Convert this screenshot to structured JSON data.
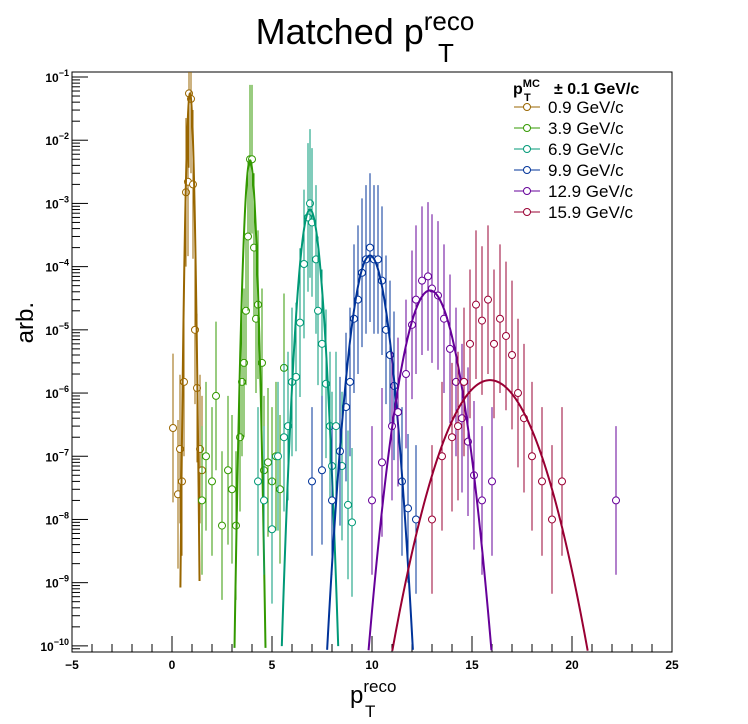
{
  "chart_data": {
    "type": "scatter",
    "title": {
      "main": "Matched p",
      "sup": "reco",
      "sub": "T"
    },
    "xlabel": {
      "main": "p",
      "sup": "reco",
      "sub": "T"
    },
    "ylabel": "arb.",
    "xlim": [
      -5,
      25
    ],
    "ylim": [
      8e-11,
      0.12
    ],
    "yscale": "log",
    "x_ticks": [
      -5,
      0,
      5,
      10,
      15,
      20,
      25
    ],
    "x_tick_labels": [
      "−5",
      "0",
      "5",
      "10",
      "15",
      "20",
      "25"
    ],
    "y_ticks": [
      1e-10,
      1e-09,
      1e-08,
      1e-07,
      1e-06,
      1e-05,
      0.0001,
      0.001,
      0.01,
      0.1
    ],
    "y_tick_labels": [
      {
        "base": "10",
        "exp": "−10"
      },
      {
        "base": "10",
        "exp": "−9"
      },
      {
        "base": "10",
        "exp": "−8"
      },
      {
        "base": "10",
        "exp": "−7"
      },
      {
        "base": "10",
        "exp": "−6"
      },
      {
        "base": "10",
        "exp": "−5"
      },
      {
        "base": "10",
        "exp": "−4"
      },
      {
        "base": "10",
        "exp": "−3"
      },
      {
        "base": "10",
        "exp": "−2"
      },
      {
        "base": "10",
        "exp": "−1"
      }
    ],
    "grid": false,
    "legend": {
      "placement": "top-right",
      "header": {
        "p": "p",
        "sup": "MC",
        "sub": "T",
        "rest": "± 0.1 GeV/c"
      }
    },
    "series": [
      {
        "name": "0.9 GeV/c",
        "color": "#996600",
        "fit": {
          "mu": 0.9,
          "sigma": 0.08,
          "peak": 0.055
        },
        "points": [
          [
            0.05,
            2.8e-07
          ],
          [
            0.3,
            2.5e-08
          ],
          [
            0.4,
            1.3e-07
          ],
          [
            0.5,
            4e-08
          ],
          [
            0.6,
            1.5e-06
          ],
          [
            0.7,
            0.0015
          ],
          [
            0.8,
            0.0022
          ],
          [
            0.85,
            0.055
          ],
          [
            0.95,
            0.045
          ],
          [
            1.05,
            0.002
          ],
          [
            1.15,
            1e-05
          ],
          [
            1.25,
            1.2e-06
          ],
          [
            1.4,
            1.3e-07
          ],
          [
            1.5,
            6e-08
          ]
        ]
      },
      {
        "name": "3.9 GeV/c",
        "color": "#339900",
        "fit": {
          "mu": 3.9,
          "sigma": 0.13,
          "peak": 0.0048
        },
        "points": [
          [
            1.5,
            2e-08
          ],
          [
            1.7,
            1e-07
          ],
          [
            2.0,
            4e-08
          ],
          [
            2.2,
            9e-07
          ],
          [
            2.5,
            8e-09
          ],
          [
            2.8,
            6e-08
          ],
          [
            3.0,
            3e-08
          ],
          [
            3.2,
            8e-09
          ],
          [
            3.4,
            2e-07
          ],
          [
            3.5,
            1.5e-06
          ],
          [
            3.6,
            3e-06
          ],
          [
            3.7,
            2e-05
          ],
          [
            3.8,
            0.0003
          ],
          [
            3.9,
            0.005
          ],
          [
            4.0,
            0.005
          ],
          [
            4.1,
            0.0002
          ],
          [
            4.2,
            1.5e-05
          ],
          [
            4.3,
            2.5e-05
          ],
          [
            4.5,
            3e-06
          ],
          [
            4.6,
            6e-08
          ],
          [
            4.8,
            8e-08
          ],
          [
            5.0,
            4e-08
          ],
          [
            5.2,
            1e-07
          ],
          [
            5.4,
            3e-08
          ],
          [
            5.6,
            2.5e-06
          ]
        ]
      },
      {
        "name": "6.9 GeV/c",
        "color": "#009977",
        "fit": {
          "mu": 6.9,
          "sigma": 0.25,
          "peak": 0.0008
        },
        "points": [
          [
            4.3,
            4e-08
          ],
          [
            4.6,
            2e-08
          ],
          [
            5.0,
            7e-09
          ],
          [
            5.3,
            1e-07
          ],
          [
            5.6,
            2e-07
          ],
          [
            5.8,
            3e-07
          ],
          [
            6.0,
            1.5e-06
          ],
          [
            6.2,
            1.8e-06
          ],
          [
            6.4,
            1.3e-05
          ],
          [
            6.6,
            0.00011
          ],
          [
            6.8,
            0.0006
          ],
          [
            6.9,
            0.001
          ],
          [
            7.0,
            0.0005
          ],
          [
            7.2,
            0.00013
          ],
          [
            7.3,
            2e-05
          ],
          [
            7.5,
            6e-06
          ],
          [
            7.7,
            1.4e-06
          ],
          [
            7.9,
            3e-07
          ],
          [
            8.0,
            7e-08
          ],
          [
            8.2,
            3e-07
          ],
          [
            8.5,
            7e-08
          ],
          [
            8.8,
            1.7e-08
          ],
          [
            9.0,
            9e-09
          ]
        ]
      },
      {
        "name": "9.9 GeV/c",
        "color": "#003399",
        "fit": {
          "mu": 9.9,
          "sigma": 0.4,
          "peak": 0.00015
        },
        "points": [
          [
            7.0,
            4e-08
          ],
          [
            7.5,
            6e-08
          ],
          [
            8.0,
            2e-08
          ],
          [
            8.4,
            1.2e-07
          ],
          [
            8.7,
            6e-07
          ],
          [
            8.9,
            1.5e-06
          ],
          [
            9.1,
            1.5e-05
          ],
          [
            9.3,
            3e-05
          ],
          [
            9.5,
            8e-05
          ],
          [
            9.7,
            0.00013
          ],
          [
            9.9,
            0.0002
          ],
          [
            10.1,
            0.00013
          ],
          [
            10.3,
            0.00013
          ],
          [
            10.5,
            6e-05
          ],
          [
            10.7,
            1e-05
          ],
          [
            10.9,
            4e-06
          ],
          [
            11.1,
            1.3e-06
          ],
          [
            11.3,
            5e-07
          ],
          [
            11.5,
            4e-08
          ],
          [
            11.8,
            1.5e-08
          ],
          [
            12.2,
            1e-08
          ]
        ]
      },
      {
        "name": "12.9 GeV/c",
        "color": "#660099",
        "fit": {
          "mu": 12.9,
          "sigma": 0.6,
          "peak": 4.2e-05
        },
        "points": [
          [
            10.0,
            2e-08
          ],
          [
            10.5,
            8e-08
          ],
          [
            11.0,
            3e-07
          ],
          [
            11.3,
            5e-07
          ],
          [
            11.7,
            2e-06
          ],
          [
            12.0,
            1.2e-05
          ],
          [
            12.2,
            3e-05
          ],
          [
            12.5,
            6e-05
          ],
          [
            12.8,
            7e-05
          ],
          [
            13.0,
            4.5e-05
          ],
          [
            13.3,
            3.5e-05
          ],
          [
            13.6,
            1.5e-05
          ],
          [
            13.9,
            5e-06
          ],
          [
            14.2,
            1.5e-06
          ],
          [
            14.5,
            4e-07
          ],
          [
            14.8,
            1.7e-07
          ],
          [
            15.1,
            5e-08
          ],
          [
            15.5,
            2e-08
          ],
          [
            16.0,
            4e-08
          ],
          [
            22.2,
            2e-08
          ]
        ]
      },
      {
        "name": "15.9 GeV/c",
        "color": "#990033",
        "fit": {
          "mu": 15.9,
          "sigma": 1.1,
          "peak": 1.6e-06
        },
        "points": [
          [
            13.0,
            1e-08
          ],
          [
            13.5,
            1e-07
          ],
          [
            14.0,
            2e-07
          ],
          [
            14.3,
            3e-07
          ],
          [
            14.6,
            1.5e-06
          ],
          [
            14.9,
            6e-06
          ],
          [
            15.2,
            2.5e-05
          ],
          [
            15.5,
            1.4e-05
          ],
          [
            15.8,
            3e-05
          ],
          [
            16.1,
            6e-06
          ],
          [
            16.4,
            1.5e-05
          ],
          [
            16.7,
            8e-06
          ],
          [
            17.0,
            4e-06
          ],
          [
            17.3,
            1e-06
          ],
          [
            17.6,
            4e-07
          ],
          [
            18.0,
            1e-07
          ],
          [
            18.5,
            4e-08
          ],
          [
            19.0,
            1e-08
          ],
          [
            19.5,
            4e-08
          ]
        ]
      }
    ]
  }
}
